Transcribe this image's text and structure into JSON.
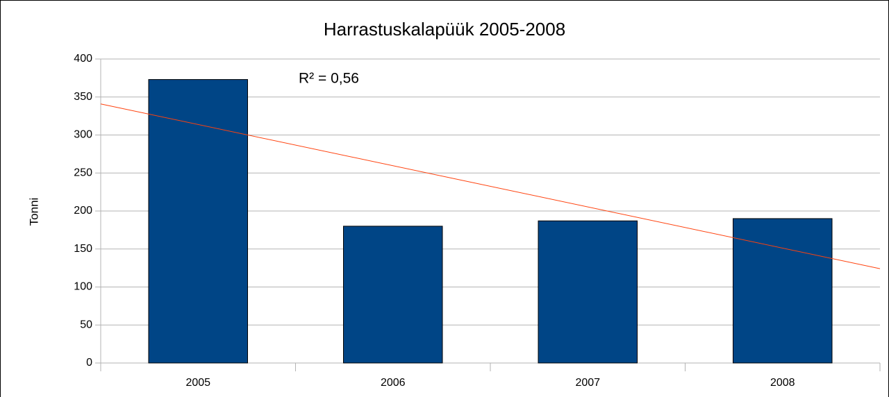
{
  "chart_data": {
    "type": "bar",
    "title": "Harrastuskalapüük 2005-2008",
    "y_label": "Tonni",
    "categories": [
      "2005",
      "2006",
      "2007",
      "2008"
    ],
    "values": [
      373,
      180,
      187,
      190
    ],
    "color": "#004586",
    "ylim": [
      0,
      400
    ],
    "yticks": [
      0,
      50,
      100,
      150,
      200,
      250,
      300,
      350,
      400
    ],
    "grid": true,
    "trendline": "linear",
    "trendline_color": "#ff420e",
    "annotation": "R² = 0,56"
  }
}
